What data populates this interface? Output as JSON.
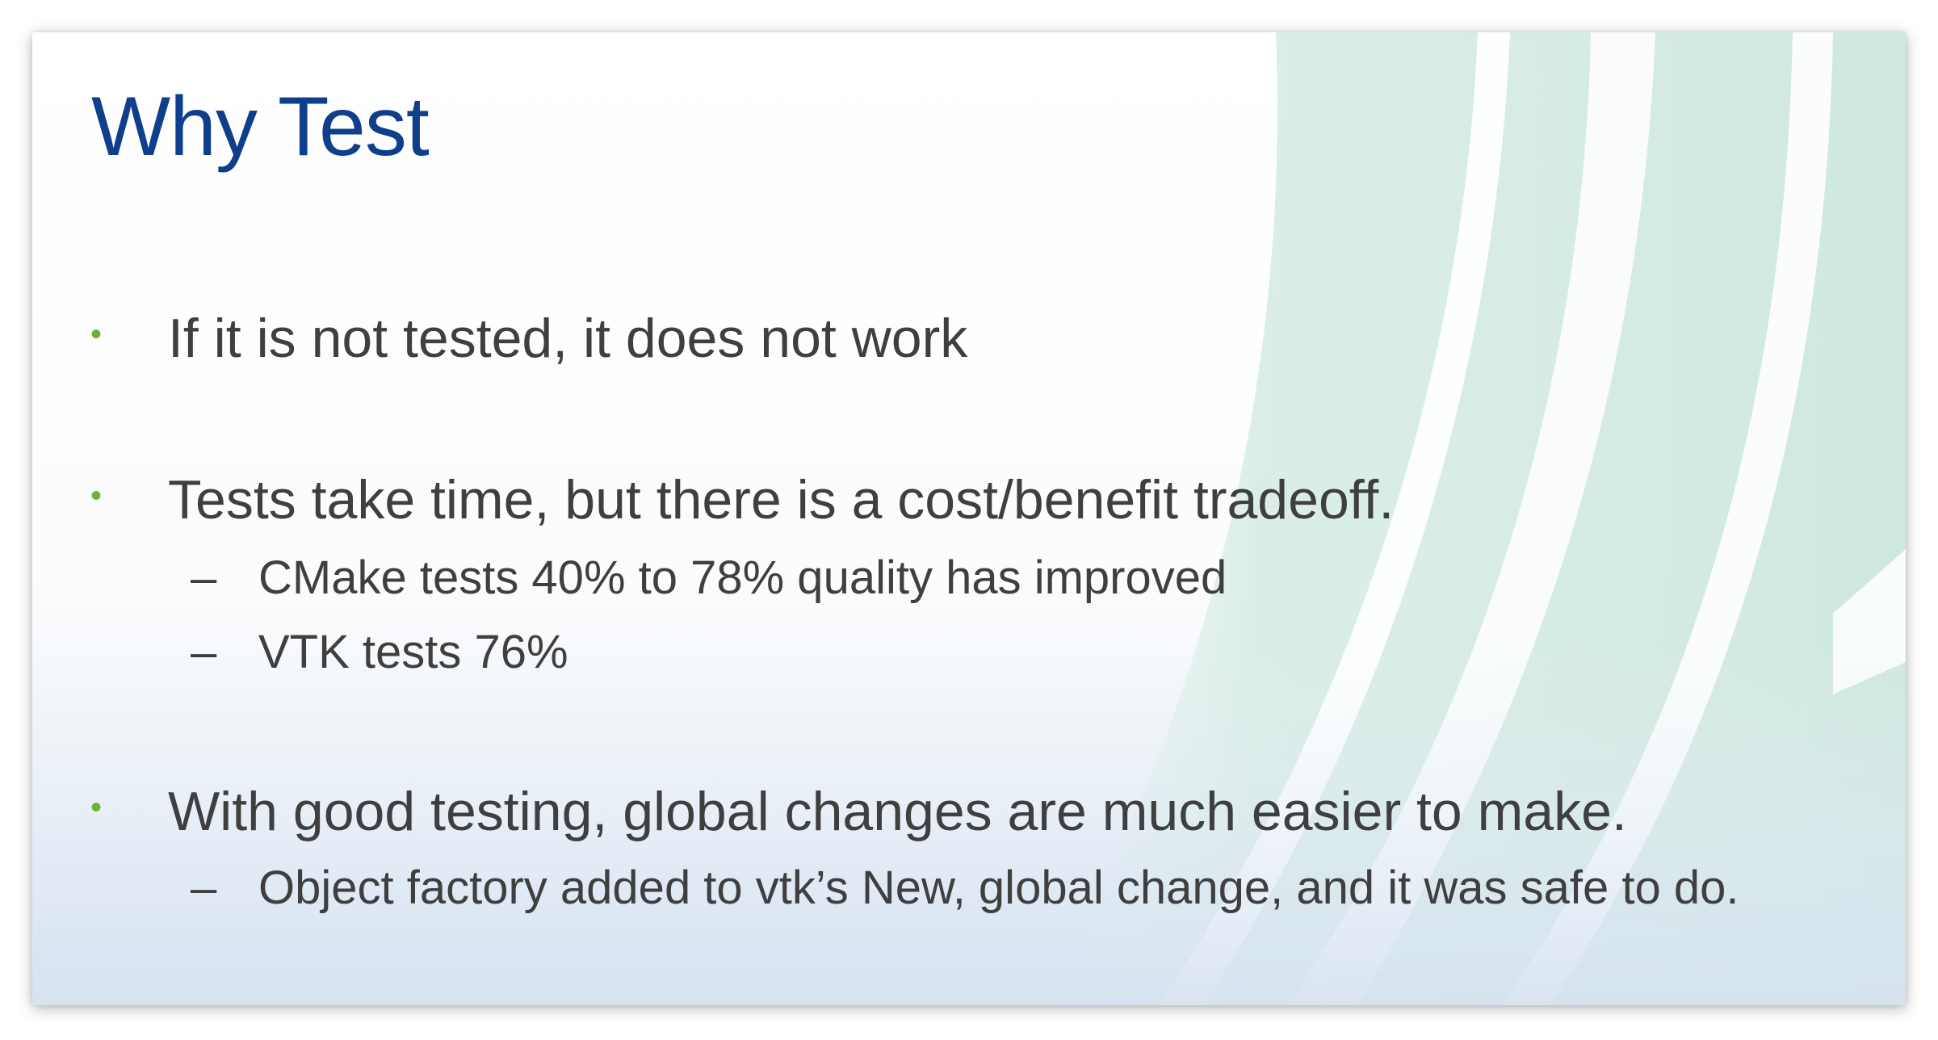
{
  "slide": {
    "title": "Why Test",
    "bullet_marker": "•",
    "sub_marker": "–",
    "bullets": [
      {
        "text": "If it is not tested, it does not work",
        "subs": []
      },
      {
        "text": "Tests take time, but there is a cost/benefit tradeoff.",
        "subs": [
          "CMake tests 40% to 78% quality has improved",
          "VTK tests 76%"
        ]
      },
      {
        "text": "With good testing, global changes are much easier to make.",
        "subs": [
          "Object factory added to vtk’s New, global change, and it was safe to do."
        ]
      }
    ]
  },
  "colors": {
    "title": "#0f3f8c",
    "body_text": "#3f3f3f",
    "bullet": "#6fae3f",
    "decor_teal": "#cfe8df"
  }
}
